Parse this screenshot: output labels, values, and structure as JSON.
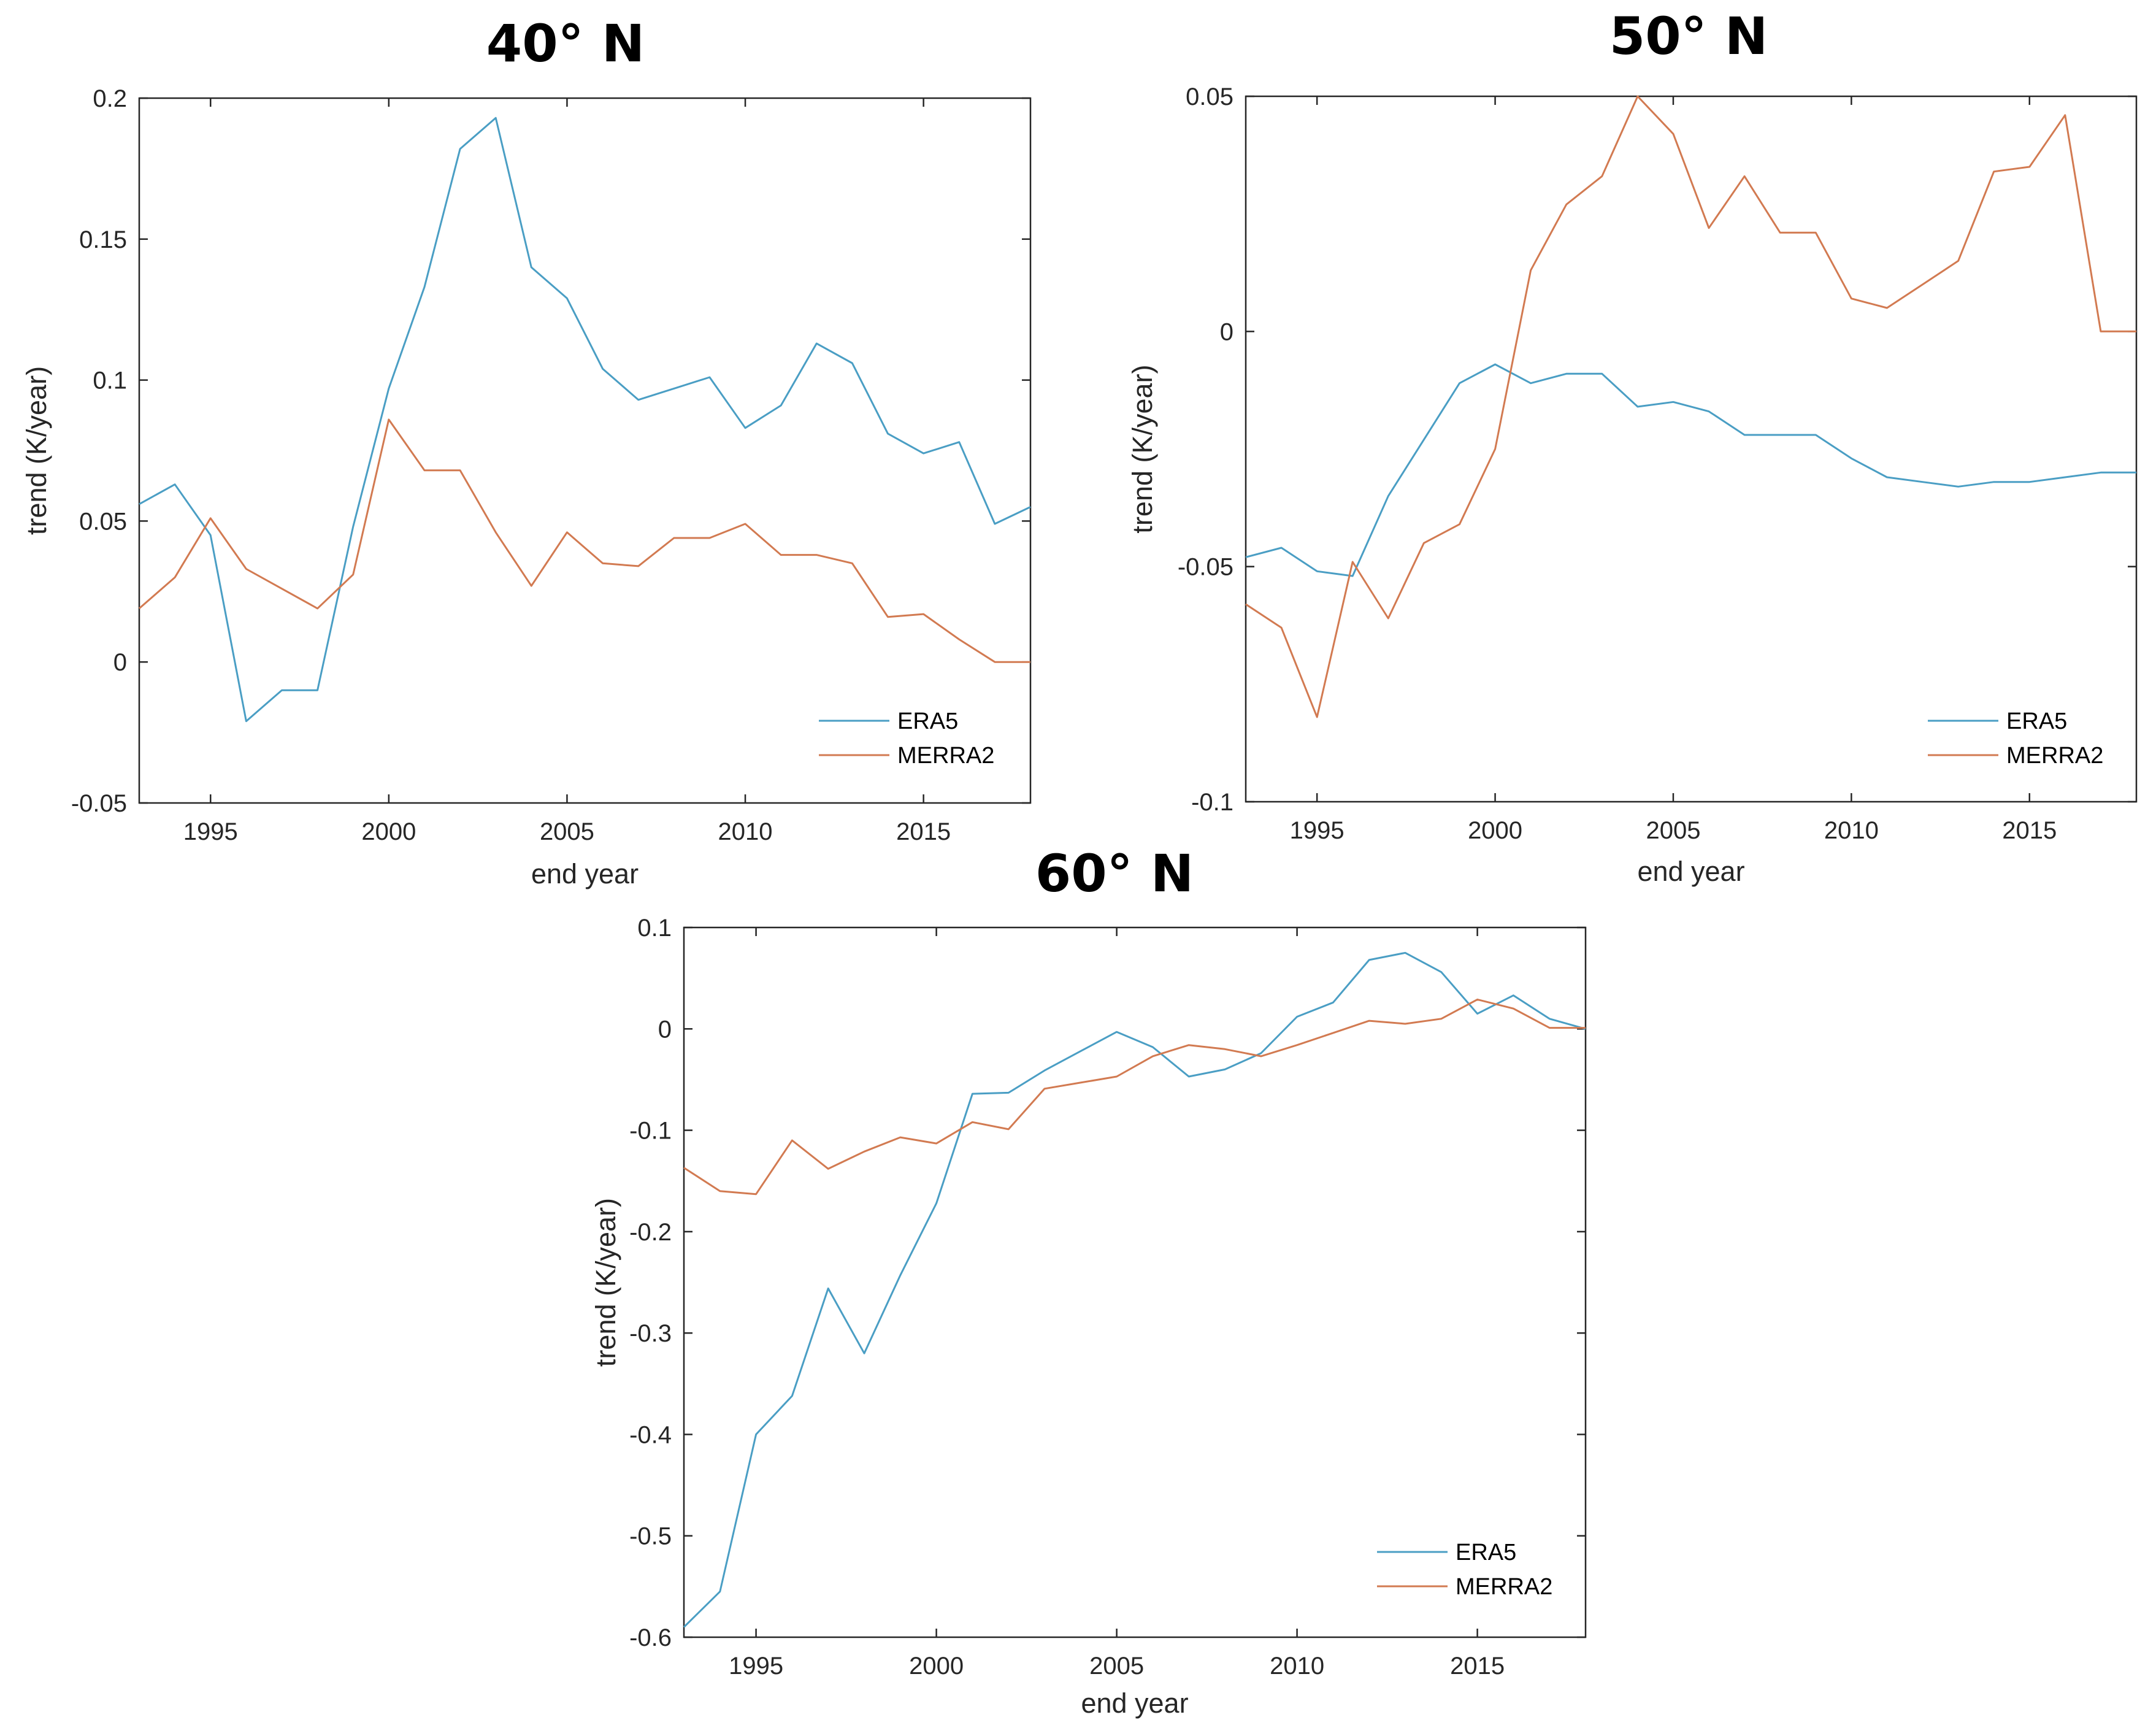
{
  "chart_data": [
    {
      "type": "line",
      "title": "40° N",
      "xlabel": "end year",
      "ylabel": "trend (K/year)",
      "xlim": [
        1993,
        2018
      ],
      "ylim": [
        -0.05,
        0.2
      ],
      "xticks": [
        1995,
        2000,
        2005,
        2010,
        2015
      ],
      "xtick_labels": [
        "1995",
        "2000",
        "2005",
        "2010",
        "2015"
      ],
      "yticks": [
        -0.05,
        0,
        0.05,
        0.1,
        0.15,
        0.2
      ],
      "ytick_labels": [
        "-0.05",
        "0",
        "0.05",
        "0.1",
        "0.15",
        "0.2"
      ],
      "legend_position": "bottom-right",
      "x": [
        1993,
        1994,
        1995,
        1996,
        1997,
        1998,
        1999,
        2000,
        2001,
        2002,
        2003,
        2004,
        2005,
        2006,
        2007,
        2008,
        2009,
        2010,
        2011,
        2012,
        2013,
        2014,
        2015,
        2016,
        2017,
        2018
      ],
      "series": [
        {
          "name": "ERA5",
          "color": "#4a9ec4",
          "values": [
            0.056,
            0.063,
            0.045,
            -0.021,
            -0.01,
            -0.01,
            0.048,
            0.097,
            0.133,
            0.182,
            0.193,
            0.14,
            0.129,
            0.104,
            0.093,
            0.097,
            0.101,
            0.083,
            0.091,
            0.113,
            0.106,
            0.081,
            0.074,
            0.078,
            0.049,
            0.055
          ]
        },
        {
          "name": "MERRA2",
          "color": "#d27a51",
          "values": [
            0.019,
            0.03,
            0.051,
            0.033,
            0.026,
            0.019,
            0.031,
            0.086,
            0.068,
            0.068,
            0.046,
            0.027,
            0.046,
            0.035,
            0.034,
            0.044,
            0.044,
            0.049,
            0.038,
            0.038,
            0.035,
            0.016,
            0.017,
            0.008,
            0.0,
            0.0
          ]
        }
      ]
    },
    {
      "type": "line",
      "title": "50° N",
      "xlabel": "end year",
      "ylabel": "trend (K/year)",
      "xlim": [
        1993,
        2018
      ],
      "ylim": [
        -0.1,
        0.05
      ],
      "xticks": [
        1995,
        2000,
        2005,
        2010,
        2015
      ],
      "xtick_labels": [
        "1995",
        "2000",
        "2005",
        "2010",
        "2015"
      ],
      "yticks": [
        -0.1,
        -0.05,
        0,
        0.05
      ],
      "ytick_labels": [
        "-0.1",
        "-0.05",
        "0",
        "0.05"
      ],
      "legend_position": "bottom-right",
      "x": [
        1993,
        1994,
        1995,
        1996,
        1997,
        1998,
        1999,
        2000,
        2001,
        2002,
        2003,
        2004,
        2005,
        2006,
        2007,
        2008,
        2009,
        2010,
        2011,
        2012,
        2013,
        2014,
        2015,
        2016,
        2017,
        2018
      ],
      "series": [
        {
          "name": "ERA5",
          "color": "#4a9ec4",
          "values": [
            -0.048,
            -0.046,
            -0.051,
            -0.052,
            -0.035,
            -0.023,
            -0.011,
            -0.007,
            -0.011,
            -0.009,
            -0.009,
            -0.016,
            -0.015,
            -0.017,
            -0.022,
            -0.022,
            -0.022,
            -0.027,
            -0.031,
            -0.032,
            -0.033,
            -0.032,
            -0.032,
            -0.031,
            -0.03,
            -0.03
          ]
        },
        {
          "name": "MERRA2",
          "color": "#d27a51",
          "values": [
            -0.058,
            -0.063,
            -0.082,
            -0.049,
            -0.061,
            -0.045,
            -0.041,
            -0.025,
            0.013,
            0.027,
            0.033,
            0.05,
            0.042,
            0.022,
            0.033,
            0.021,
            0.021,
            0.007,
            0.005,
            0.01,
            0.015,
            0.034,
            0.035,
            0.046,
            0.0,
            0.0
          ]
        }
      ]
    },
    {
      "type": "line",
      "title": "60° N",
      "xlabel": "end year",
      "ylabel": "trend (K/year)",
      "xlim": [
        1993,
        2018
      ],
      "ylim": [
        -0.6,
        0.1
      ],
      "xticks": [
        1995,
        2000,
        2005,
        2010,
        2015
      ],
      "xtick_labels": [
        "1995",
        "2000",
        "2005",
        "2010",
        "2015"
      ],
      "yticks": [
        -0.6,
        -0.5,
        -0.4,
        -0.3,
        -0.2,
        -0.1,
        0,
        0.1
      ],
      "ytick_labels": [
        "-0.6",
        "-0.5",
        "-0.4",
        "-0.3",
        "-0.2",
        "-0.1",
        "0",
        "0.1"
      ],
      "legend_position": "bottom-right",
      "x": [
        1993,
        1994,
        1995,
        1996,
        1997,
        1998,
        1999,
        2000,
        2001,
        2002,
        2003,
        2004,
        2005,
        2006,
        2007,
        2008,
        2009,
        2010,
        2011,
        2012,
        2013,
        2014,
        2015,
        2016,
        2017,
        2018
      ],
      "series": [
        {
          "name": "ERA5",
          "color": "#4a9ec4",
          "values": [
            -0.59,
            -0.555,
            -0.4,
            -0.362,
            -0.256,
            -0.32,
            -0.243,
            -0.172,
            -0.064,
            -0.063,
            -0.041,
            -0.022,
            -0.003,
            -0.018,
            -0.047,
            -0.04,
            -0.024,
            0.012,
            0.026,
            0.068,
            0.075,
            0.056,
            0.015,
            0.033,
            0.01,
            0.0
          ]
        },
        {
          "name": "MERRA2",
          "color": "#d27a51",
          "values": [
            -0.137,
            -0.16,
            -0.163,
            -0.11,
            -0.138,
            -0.121,
            -0.107,
            -0.113,
            -0.092,
            -0.099,
            -0.059,
            -0.053,
            -0.047,
            -0.027,
            -0.016,
            -0.02,
            -0.027,
            -0.016,
            -0.004,
            0.008,
            0.005,
            0.01,
            0.029,
            0.02,
            0.001,
            0.001
          ]
        }
      ]
    }
  ]
}
